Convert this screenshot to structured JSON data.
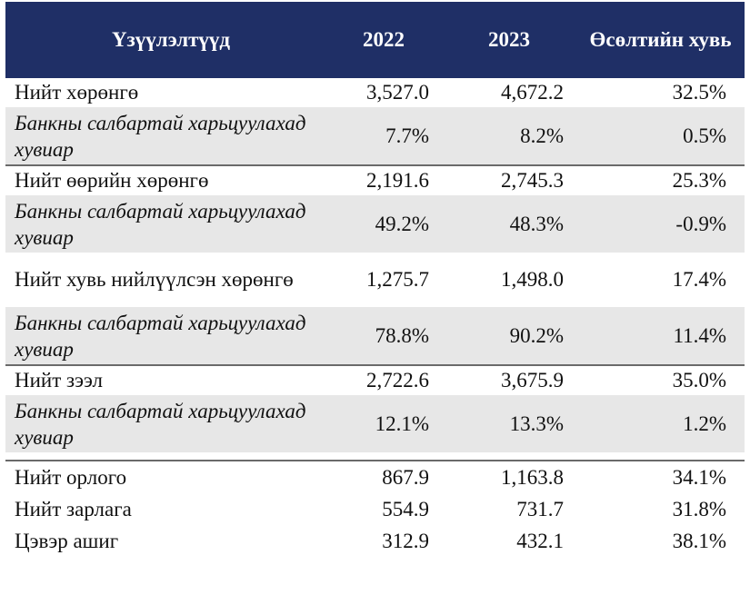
{
  "table": {
    "headers": [
      "Үзүүлэлтүүд",
      "2022",
      "2023",
      "Өсөлтийн хувь"
    ],
    "rows": [
      {
        "label": "Нийт хөрөнгө",
        "y2022": "3,527.0",
        "y2023": "4,672.2",
        "growth": "32.5%"
      },
      {
        "label": "Банкны салбартай харьцуулахад хувиар",
        "y2022": "7.7%",
        "y2023": "8.2%",
        "growth": "0.5%"
      },
      {
        "label": "Нийт өөрийн хөрөнгө",
        "y2022": "2,191.6",
        "y2023": "2,745.3",
        "growth": "25.3%"
      },
      {
        "label": "Банкны салбартай харьцуулахад хувиар",
        "y2022": "49.2%",
        "y2023": "48.3%",
        "growth": "-0.9%"
      },
      {
        "label": "Нийт хувь нийлүүлсэн хөрөнгө",
        "y2022": "1,275.7",
        "y2023": "1,498.0",
        "growth": "17.4%"
      },
      {
        "label": "Банкны салбартай харьцуулахад хувиар",
        "y2022": "78.8%",
        "y2023": "90.2%",
        "growth": "11.4%"
      },
      {
        "label": "Нийт зээл",
        "y2022": "2,722.6",
        "y2023": "3,675.9",
        "growth": "35.0%"
      },
      {
        "label": "Банкны салбартай харьцуулахад хувиар",
        "y2022": "12.1%",
        "y2023": "13.3%",
        "growth": "1.2%"
      },
      {
        "label": "Нийт орлого",
        "y2022": "867.9",
        "y2023": "1,163.8",
        "growth": "34.1%"
      },
      {
        "label": "Нийт зарлага",
        "y2022": "554.9",
        "y2023": "731.7",
        "growth": "31.8%"
      },
      {
        "label": "Цэвэр ашиг",
        "y2022": "312.9",
        "y2023": "432.1",
        "growth": "38.1%"
      }
    ]
  },
  "colors": {
    "header_background": "#1f2f66",
    "header_text": "#ffffff",
    "shaded_row": "#e7e7e7"
  }
}
